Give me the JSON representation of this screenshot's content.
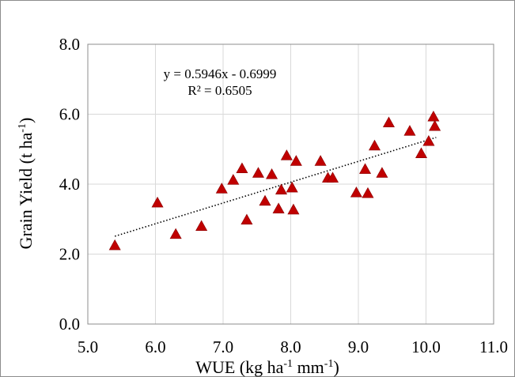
{
  "chart_data": {
    "type": "scatter",
    "title": "",
    "xlabel": {
      "main": "WUE (kg ha",
      "sup1": "-1",
      "mid": " mm",
      "sup2": "-1",
      "end": ")"
    },
    "ylabel": {
      "main": "Grain Yield (t ha",
      "sup": "-1",
      "end": ")"
    },
    "xlim": [
      5.0,
      11.0
    ],
    "ylim": [
      0.0,
      8.0
    ],
    "xticks": [
      "5.0",
      "6.0",
      "7.0",
      "8.0",
      "9.0",
      "10.0",
      "11.0"
    ],
    "yticks": [
      "0.0",
      "2.0",
      "4.0",
      "6.0",
      "8.0"
    ],
    "grid": true,
    "legend": "none",
    "marker": "triangle",
    "marker_color": "#c00000",
    "series": [
      {
        "points": [
          [
            5.4,
            2.25
          ],
          [
            6.03,
            3.47
          ],
          [
            6.3,
            2.57
          ],
          [
            6.68,
            2.8
          ],
          [
            6.98,
            3.87
          ],
          [
            7.15,
            4.12
          ],
          [
            7.28,
            4.45
          ],
          [
            7.35,
            2.98
          ],
          [
            7.52,
            4.32
          ],
          [
            7.62,
            3.52
          ],
          [
            7.72,
            4.28
          ],
          [
            7.82,
            3.3
          ],
          [
            7.86,
            3.84
          ],
          [
            7.94,
            4.82
          ],
          [
            8.02,
            3.9
          ],
          [
            8.04,
            3.27
          ],
          [
            8.08,
            4.66
          ],
          [
            8.44,
            4.66
          ],
          [
            8.55,
            4.18
          ],
          [
            8.62,
            4.18
          ],
          [
            8.97,
            3.76
          ],
          [
            9.1,
            4.43
          ],
          [
            9.14,
            3.74
          ],
          [
            9.24,
            5.1
          ],
          [
            9.35,
            4.32
          ],
          [
            9.45,
            5.76
          ],
          [
            9.76,
            5.52
          ],
          [
            9.93,
            4.88
          ],
          [
            10.04,
            5.23
          ],
          [
            10.11,
            5.93
          ],
          [
            10.13,
            5.66
          ]
        ]
      }
    ],
    "trendline": {
      "slope": 0.5946,
      "intercept": -0.6999,
      "x_range": [
        5.4,
        10.15
      ],
      "color": "#000000",
      "style": "dotted"
    },
    "annotations": {
      "equation": "y = 0.5946x - 0.6999",
      "r2": "R² = 0.6505"
    }
  }
}
